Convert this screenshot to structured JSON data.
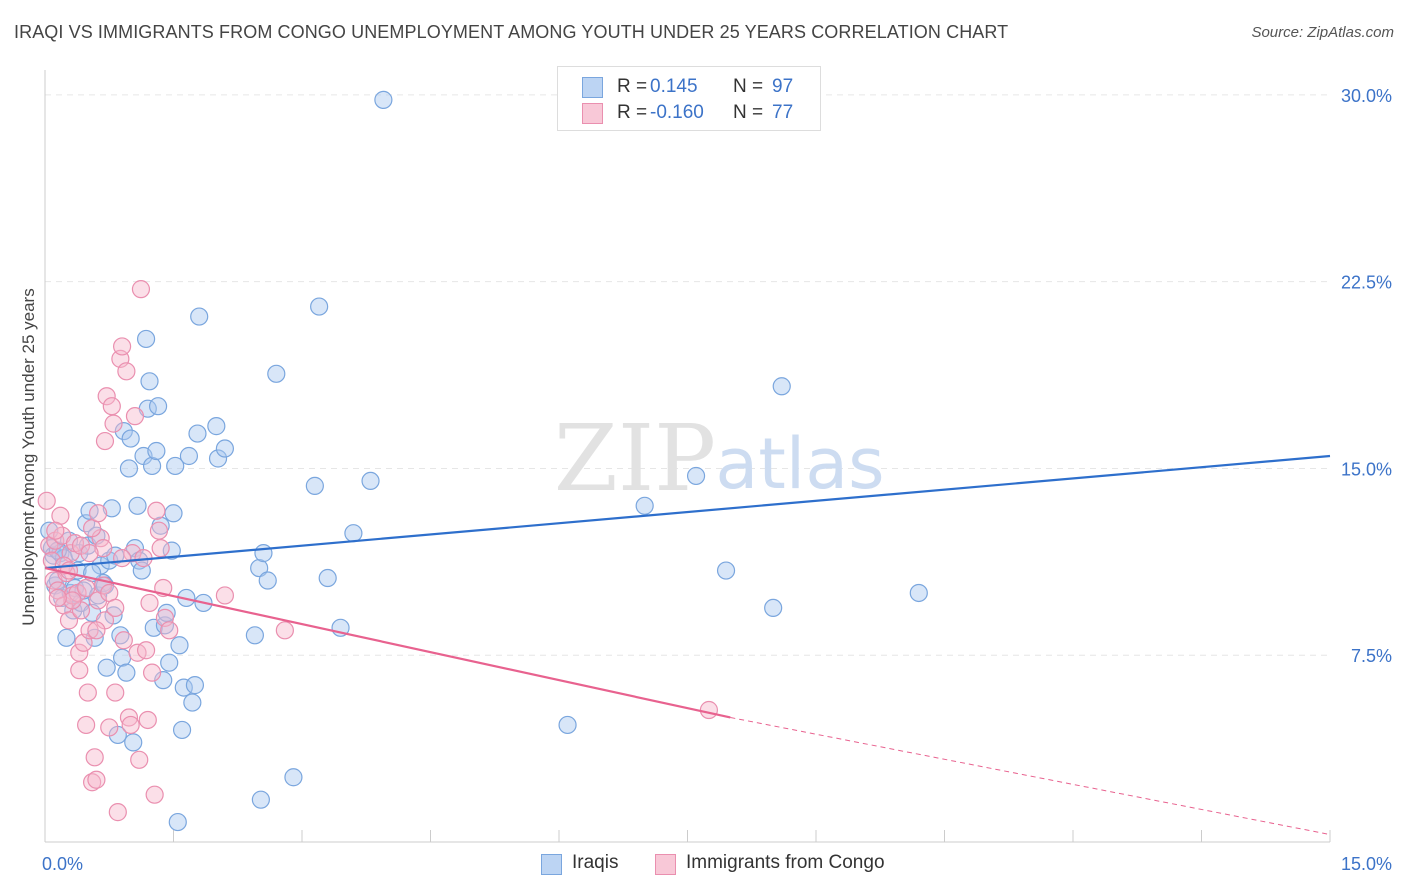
{
  "title": "IRAQI VS IMMIGRANTS FROM CONGO UNEMPLOYMENT AMONG YOUTH UNDER 25 YEARS CORRELATION CHART",
  "source": "Source: ZipAtlas.com",
  "watermark": {
    "zip": "ZIP",
    "atlas": "atlas"
  },
  "colors": {
    "iraqis_fill": "#a9c8ef",
    "iraqis_stroke": "#7aa6de",
    "iraqis_line": "#2e6fcc",
    "congo_fill": "#f6b8cb",
    "congo_stroke": "#ea8faf",
    "congo_line": "#e8628f",
    "tick_text": "#3c73c8",
    "grid": "#e6e6e6"
  },
  "stats_legend": {
    "rows": [
      {
        "series": "Iraqis",
        "r_label": "R =",
        "r_value": "0.145",
        "n_label": "N =",
        "n_value": "97"
      },
      {
        "series": "Immigrants from Congo",
        "r_label": "R =",
        "r_value": "-0.160",
        "n_label": "N =",
        "n_value": "77"
      }
    ]
  },
  "chart_data": {
    "type": "scatter",
    "title": "IRAQI VS IMMIGRANTS FROM CONGO UNEMPLOYMENT AMONG YOUTH UNDER 25 YEARS CORRELATION CHART",
    "xlabel": "",
    "ylabel": "Unemployment Among Youth under 25 years",
    "xlim": [
      0,
      15
    ],
    "ylim": [
      0,
      31
    ],
    "x_tick_labels": [
      "0.0%",
      "15.0%"
    ],
    "y_tick_values": [
      7.5,
      15.0,
      22.5,
      30.0
    ],
    "y_tick_labels": [
      "7.5%",
      "15.0%",
      "22.5%",
      "30.0%"
    ],
    "grid": true,
    "legend": [
      "Iraqis",
      "Immigrants from Congo"
    ],
    "series": [
      {
        "name": "Iraqis",
        "trend": {
          "x0": 0.0,
          "y0": 11.0,
          "x1": 15.0,
          "y1": 15.5
        },
        "points": [
          [
            0.05,
            12.5
          ],
          [
            0.08,
            11.8
          ],
          [
            0.1,
            11.5
          ],
          [
            0.12,
            10.3
          ],
          [
            0.15,
            10.5
          ],
          [
            0.18,
            11.6
          ],
          [
            0.2,
            9.8
          ],
          [
            0.22,
            11.4
          ],
          [
            0.25,
            8.2
          ],
          [
            0.28,
            12.1
          ],
          [
            0.3,
            10.0
          ],
          [
            0.33,
            9.3
          ],
          [
            0.35,
            10.2
          ],
          [
            0.38,
            10.9
          ],
          [
            0.4,
            11.6
          ],
          [
            0.42,
            9.6
          ],
          [
            0.45,
            10.1
          ],
          [
            0.48,
            12.8
          ],
          [
            0.5,
            11.9
          ],
          [
            0.52,
            13.3
          ],
          [
            0.55,
            9.2
          ],
          [
            0.58,
            8.2
          ],
          [
            0.6,
            12.3
          ],
          [
            0.62,
            9.9
          ],
          [
            0.65,
            11.1
          ],
          [
            0.68,
            10.4
          ],
          [
            0.7,
            10.3
          ],
          [
            0.72,
            7.0
          ],
          [
            0.75,
            11.3
          ],
          [
            0.78,
            13.4
          ],
          [
            0.8,
            9.1
          ],
          [
            0.82,
            11.5
          ],
          [
            0.85,
            4.3
          ],
          [
            0.88,
            8.3
          ],
          [
            0.9,
            7.4
          ],
          [
            0.92,
            16.5
          ],
          [
            0.95,
            6.8
          ],
          [
            0.98,
            15.0
          ],
          [
            1.0,
            16.2
          ],
          [
            1.03,
            4.0
          ],
          [
            1.05,
            11.8
          ],
          [
            1.08,
            13.5
          ],
          [
            1.1,
            11.3
          ],
          [
            1.13,
            10.9
          ],
          [
            1.15,
            15.5
          ],
          [
            1.18,
            20.2
          ],
          [
            1.2,
            17.4
          ],
          [
            1.22,
            18.5
          ],
          [
            1.25,
            15.1
          ],
          [
            1.27,
            8.6
          ],
          [
            1.3,
            15.7
          ],
          [
            1.32,
            17.5
          ],
          [
            1.35,
            12.7
          ],
          [
            1.38,
            6.5
          ],
          [
            1.4,
            8.7
          ],
          [
            1.42,
            9.2
          ],
          [
            1.45,
            7.2
          ],
          [
            1.48,
            11.7
          ],
          [
            1.5,
            13.2
          ],
          [
            1.52,
            15.1
          ],
          [
            1.55,
            0.8
          ],
          [
            1.57,
            7.9
          ],
          [
            1.6,
            4.5
          ],
          [
            1.62,
            6.2
          ],
          [
            1.65,
            9.8
          ],
          [
            1.68,
            15.5
          ],
          [
            1.72,
            5.6
          ],
          [
            1.75,
            6.3
          ],
          [
            1.78,
            16.4
          ],
          [
            1.8,
            21.1
          ],
          [
            1.85,
            9.6
          ],
          [
            2.0,
            16.7
          ],
          [
            2.02,
            15.4
          ],
          [
            2.1,
            15.8
          ],
          [
            2.45,
            8.3
          ],
          [
            2.5,
            11.0
          ],
          [
            2.52,
            1.7
          ],
          [
            2.55,
            11.6
          ],
          [
            2.6,
            10.5
          ],
          [
            2.7,
            18.8
          ],
          [
            2.9,
            2.6
          ],
          [
            3.15,
            14.3
          ],
          [
            3.2,
            21.5
          ],
          [
            3.3,
            10.6
          ],
          [
            3.45,
            8.6
          ],
          [
            3.6,
            12.4
          ],
          [
            3.8,
            14.5
          ],
          [
            3.95,
            29.8
          ],
          [
            6.1,
            4.7
          ],
          [
            7.0,
            13.5
          ],
          [
            7.6,
            14.7
          ],
          [
            7.95,
            10.9
          ],
          [
            8.5,
            9.4
          ],
          [
            8.6,
            18.3
          ],
          [
            10.2,
            10.0
          ],
          [
            0.15,
            11.7
          ],
          [
            0.55,
            10.8
          ]
        ]
      },
      {
        "name": "Immigrants from Congo",
        "trend": {
          "x0": 0.0,
          "y0": 11.0,
          "x1": 8.0,
          "y1": 5.0,
          "dash_to": {
            "x": 15.0,
            "y": 0.3
          }
        },
        "points": [
          [
            0.02,
            13.7
          ],
          [
            0.05,
            11.9
          ],
          [
            0.08,
            11.3
          ],
          [
            0.1,
            10.5
          ],
          [
            0.12,
            12.1
          ],
          [
            0.15,
            10.1
          ],
          [
            0.18,
            13.1
          ],
          [
            0.2,
            12.3
          ],
          [
            0.22,
            9.5
          ],
          [
            0.25,
            10.8
          ],
          [
            0.28,
            8.9
          ],
          [
            0.3,
            11.6
          ],
          [
            0.32,
            9.9
          ],
          [
            0.35,
            12.0
          ],
          [
            0.38,
            10.0
          ],
          [
            0.4,
            7.6
          ],
          [
            0.42,
            9.3
          ],
          [
            0.45,
            8.0
          ],
          [
            0.48,
            10.2
          ],
          [
            0.5,
            6.0
          ],
          [
            0.52,
            8.5
          ],
          [
            0.55,
            2.4
          ],
          [
            0.58,
            3.4
          ],
          [
            0.6,
            2.5
          ],
          [
            0.62,
            9.7
          ],
          [
            0.65,
            12.2
          ],
          [
            0.68,
            10.3
          ],
          [
            0.7,
            8.9
          ],
          [
            0.72,
            17.9
          ],
          [
            0.75,
            4.6
          ],
          [
            0.78,
            17.5
          ],
          [
            0.8,
            16.8
          ],
          [
            0.82,
            6.0
          ],
          [
            0.85,
            1.2
          ],
          [
            0.88,
            19.4
          ],
          [
            0.9,
            19.9
          ],
          [
            0.92,
            8.1
          ],
          [
            0.95,
            18.9
          ],
          [
            0.98,
            5.0
          ],
          [
            1.0,
            4.7
          ],
          [
            1.02,
            11.6
          ],
          [
            1.05,
            17.1
          ],
          [
            1.08,
            7.6
          ],
          [
            1.1,
            3.3
          ],
          [
            1.12,
            22.2
          ],
          [
            1.15,
            11.4
          ],
          [
            1.18,
            7.7
          ],
          [
            1.2,
            4.9
          ],
          [
            1.22,
            9.6
          ],
          [
            1.25,
            6.8
          ],
          [
            1.28,
            1.9
          ],
          [
            1.3,
            13.3
          ],
          [
            1.33,
            12.5
          ],
          [
            1.35,
            11.8
          ],
          [
            1.38,
            10.2
          ],
          [
            1.4,
            9.0
          ],
          [
            0.4,
            6.9
          ],
          [
            0.48,
            4.7
          ],
          [
            0.55,
            12.6
          ],
          [
            0.62,
            13.2
          ],
          [
            0.68,
            11.8
          ],
          [
            0.75,
            10.0
          ],
          [
            0.82,
            9.4
          ],
          [
            0.9,
            11.4
          ],
          [
            0.12,
            12.5
          ],
          [
            0.22,
            11.1
          ],
          [
            0.32,
            9.7
          ],
          [
            0.42,
            11.9
          ],
          [
            0.52,
            11.6
          ],
          [
            0.6,
            8.5
          ],
          [
            0.7,
            16.1
          ],
          [
            1.45,
            8.5
          ],
          [
            2.1,
            9.9
          ],
          [
            2.8,
            8.5
          ],
          [
            7.75,
            5.3
          ],
          [
            0.28,
            10.9
          ],
          [
            0.15,
            9.8
          ]
        ]
      }
    ]
  }
}
